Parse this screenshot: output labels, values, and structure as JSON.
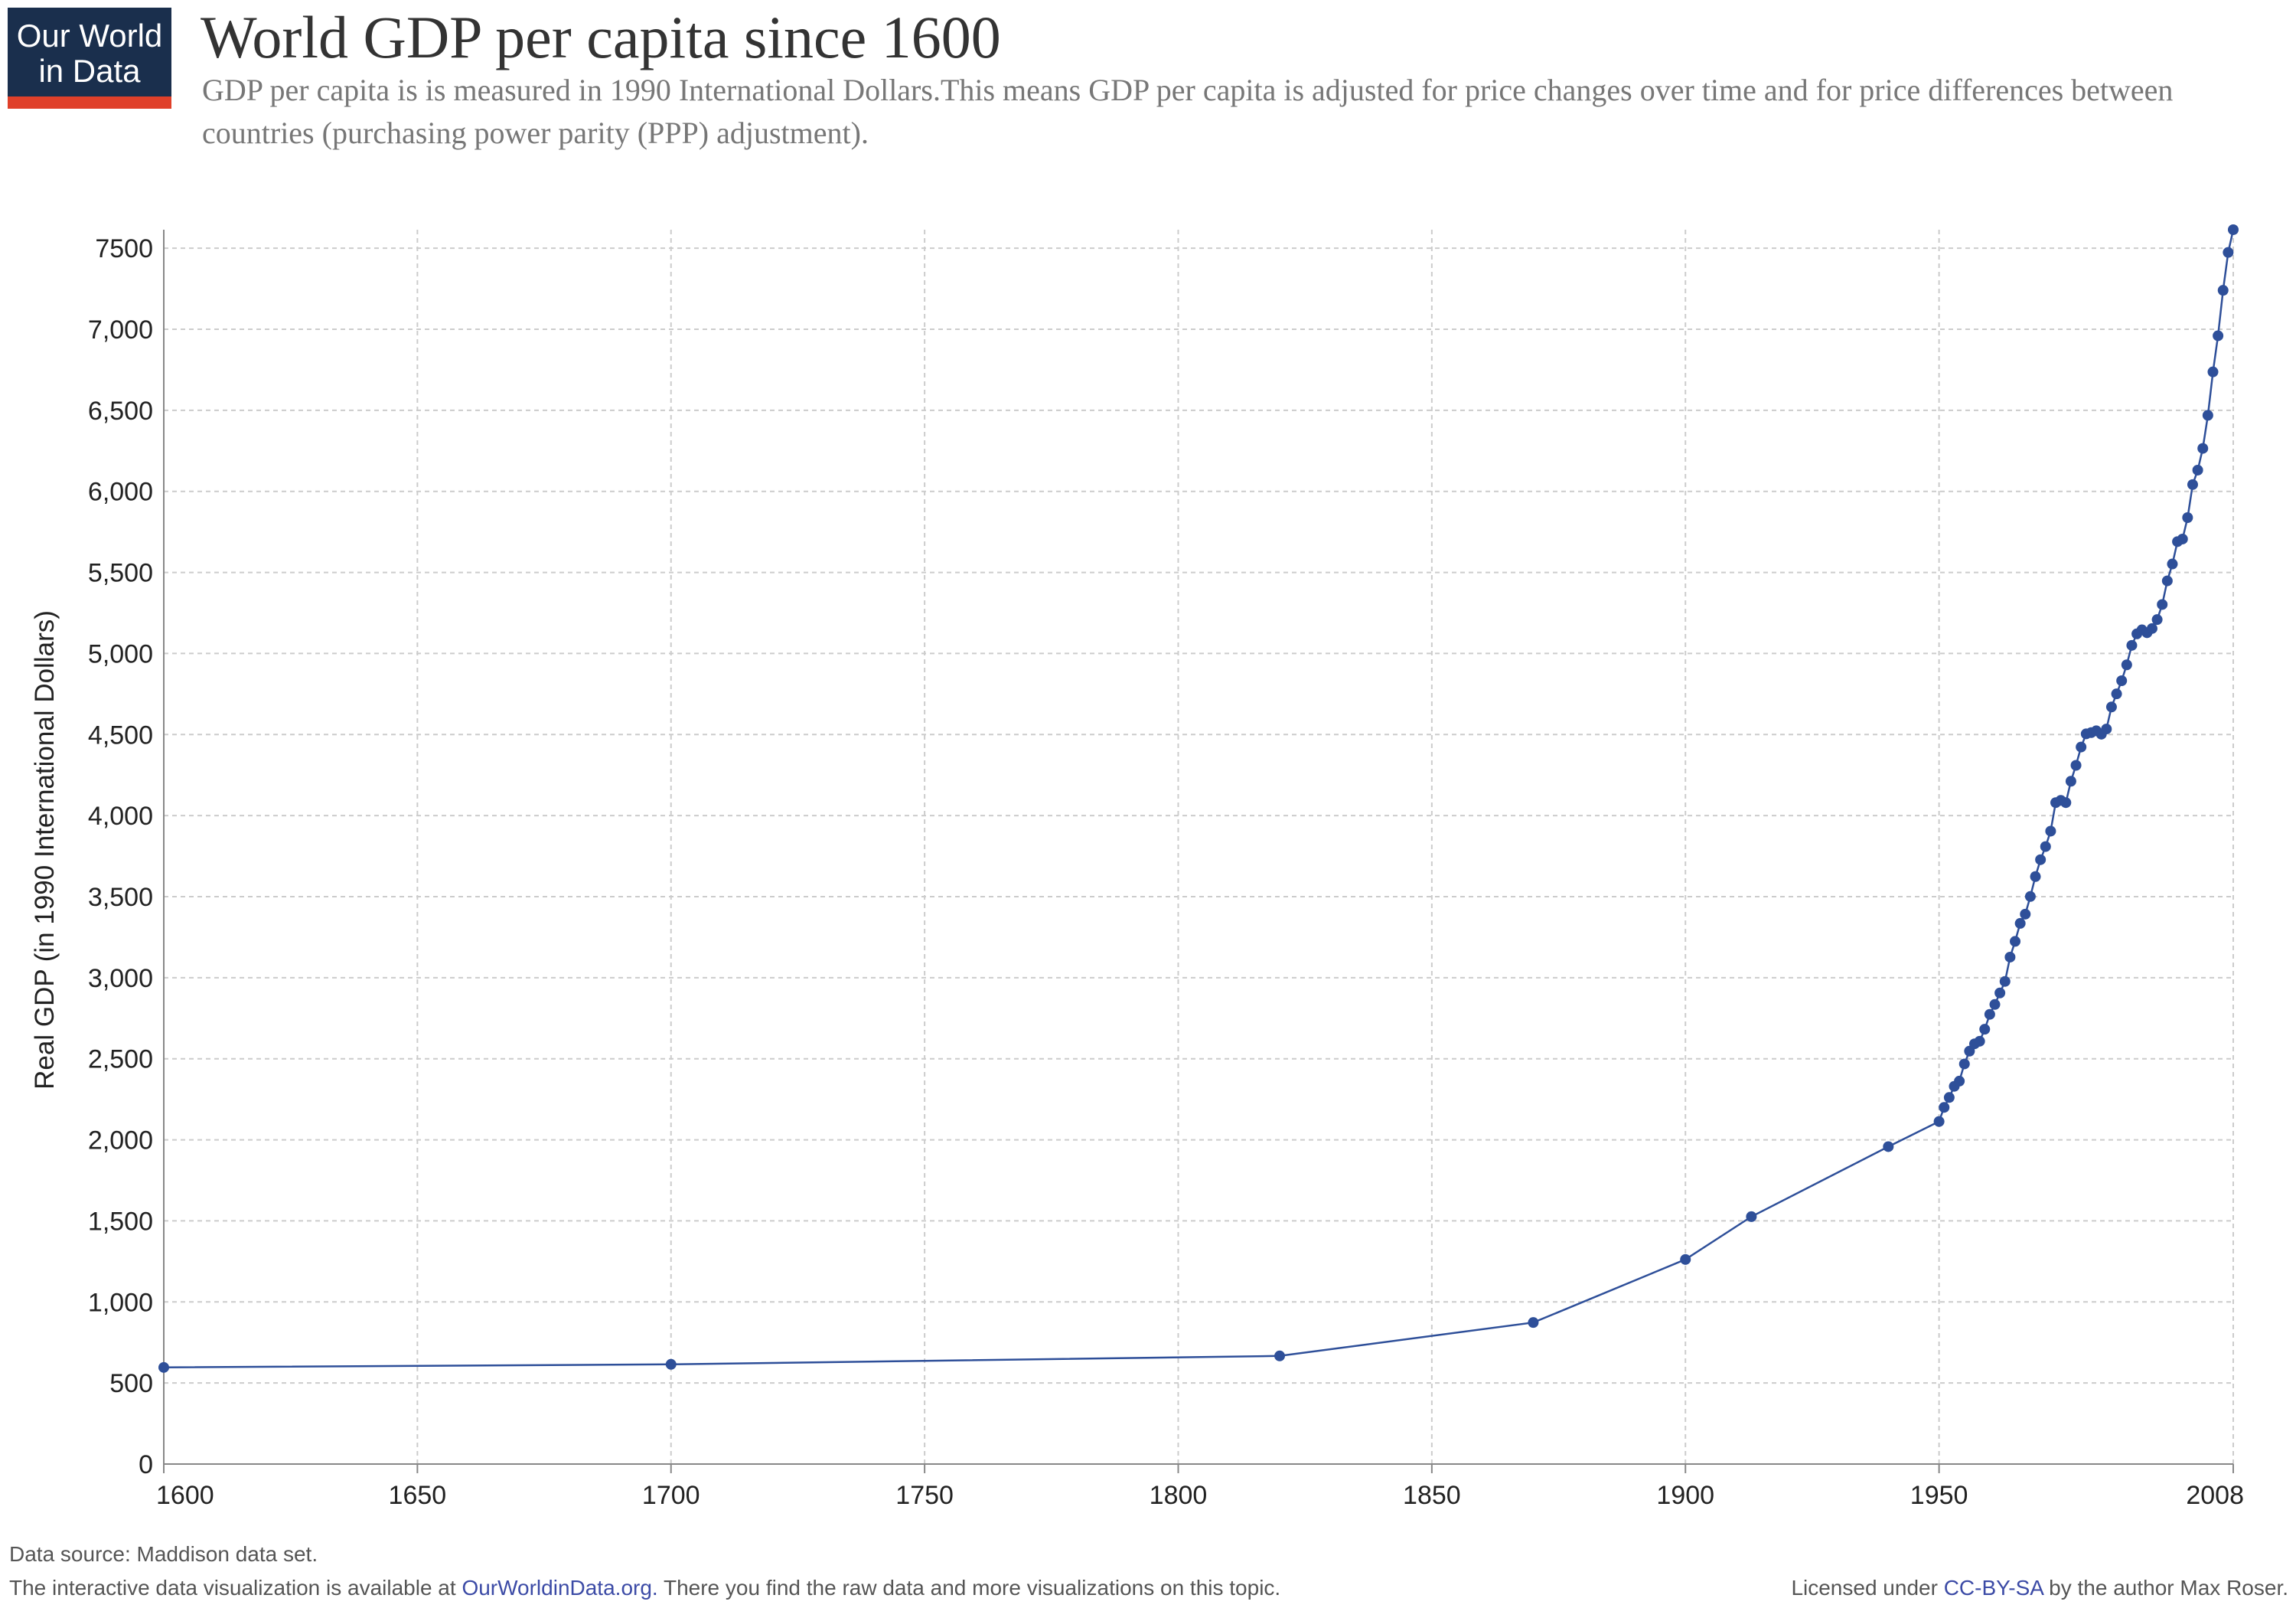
{
  "logo": {
    "line1": "Our World",
    "line2": "in Data"
  },
  "header": {
    "title": "World GDP per capita since 1600",
    "subtitle": "GDP per capita is is measured in 1990 International Dollars.This means GDP per capita is adjusted for price changes over time and for price differences between countries (purchasing power parity (PPP) adjustment)."
  },
  "footer": {
    "source": "Data source: Maddison data set.",
    "note_prefix": "The interactive data visualization is available at ",
    "note_link": "OurWorldinData.org.",
    "note_suffix": " There you find the raw data and more visualizations on this topic.",
    "license_prefix": "Licensed under ",
    "license_link": "CC-BY-SA",
    "license_suffix": " by the author Max Roser."
  },
  "colors": {
    "series": "#2e4f99",
    "grid": "#cccccc",
    "axis": "#888888",
    "link": "#3c4ba6"
  },
  "chart_data": {
    "type": "line",
    "title": "World GDP per capita since 1600",
    "xlabel": "",
    "ylabel": "Real GDP (in 1990 International Dollars)",
    "xlim": [
      1600,
      2008
    ],
    "ylim": [
      0,
      7614
    ],
    "x_ticks": [
      1600,
      1650,
      1700,
      1750,
      1800,
      1850,
      1900,
      1950,
      2008
    ],
    "y_ticks": [
      0,
      500,
      1000,
      1500,
      2000,
      2500,
      3000,
      3500,
      4000,
      4500,
      5000,
      5500,
      6000,
      6500,
      7000,
      7500
    ],
    "y_tick_labels": [
      "0",
      "500",
      "1,000",
      "1,500",
      "2,000",
      "2,500",
      "3,000",
      "3,500",
      "4,000",
      "4,500",
      "5,000",
      "5,500",
      "6,000",
      "6,500",
      "7,000",
      "7500"
    ],
    "grid": true,
    "series": [
      {
        "x": [
          1600,
          1700,
          1820,
          1870,
          1900,
          1913,
          1940,
          1950,
          1951,
          1952,
          1953,
          1954,
          1955,
          1956,
          1957,
          1958,
          1959,
          1960,
          1961,
          1962,
          1963,
          1964,
          1965,
          1966,
          1967,
          1968,
          1969,
          1970,
          1971,
          1972,
          1973,
          1974,
          1975,
          1976,
          1977,
          1978,
          1979,
          1980,
          1981,
          1982,
          1983,
          1984,
          1985,
          1986,
          1987,
          1988,
          1989,
          1990,
          1991,
          1992,
          1993,
          1994,
          1995,
          1996,
          1997,
          1998,
          1999,
          2000,
          2001,
          2002,
          2003,
          2004,
          2005,
          2006,
          2007,
          2008
        ],
        "values": [
          596,
          615,
          667,
          873,
          1262,
          1526,
          1958,
          2113,
          2200,
          2261,
          2330,
          2362,
          2468,
          2547,
          2592,
          2608,
          2682,
          2774,
          2835,
          2906,
          2977,
          3127,
          3224,
          3335,
          3392,
          3501,
          3624,
          3728,
          3809,
          3904,
          4080,
          4094,
          4080,
          4212,
          4310,
          4423,
          4504,
          4512,
          4523,
          4502,
          4534,
          4670,
          4751,
          4832,
          4930,
          5050,
          5121,
          5146,
          5128,
          5154,
          5209,
          5302,
          5448,
          5552,
          5690,
          5706,
          5838,
          6042,
          6131,
          6265,
          6469,
          6737,
          6960,
          7240,
          7474,
          7614
        ]
      }
    ]
  }
}
